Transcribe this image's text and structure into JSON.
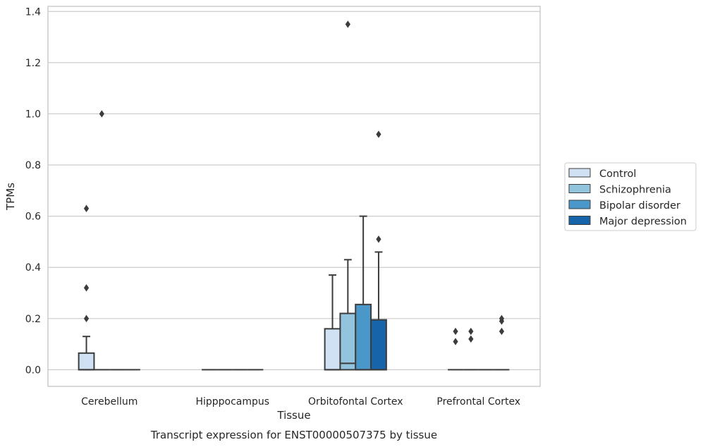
{
  "chart_data": {
    "type": "box",
    "title": "",
    "caption": "Transcript expression for ENST00000507375 by tissue",
    "xlabel": "Tissue",
    "ylabel": "TPMs",
    "ylim": [
      -0.065,
      1.42
    ],
    "yticks": [
      0.0,
      0.2,
      0.4,
      0.6,
      0.8,
      1.0,
      1.2,
      1.4
    ],
    "ytick_labels": [
      "0.0",
      "0.2",
      "0.4",
      "0.6",
      "0.8",
      "1.0",
      "1.2",
      "1.4"
    ],
    "grid": "horizontal",
    "legend_position": "right",
    "categories": [
      "Cerebellum",
      "Hipppocampus",
      "Orbitofontal Cortex",
      "Prefrontal Cortex"
    ],
    "series": [
      {
        "name": "Control",
        "color": "#cfe1f2",
        "boxes": [
          {
            "q1": 0.0,
            "median": 0.0,
            "q3": 0.065,
            "whisker_low": 0.0,
            "whisker_high": 0.13,
            "outliers": [
              0.2,
              0.32,
              0.63
            ]
          },
          {
            "q1": 0.0,
            "median": 0.0,
            "q3": 0.0,
            "whisker_low": 0.0,
            "whisker_high": 0.0,
            "outliers": []
          },
          {
            "q1": 0.0,
            "median": 0.0,
            "q3": 0.16,
            "whisker_low": 0.0,
            "whisker_high": 0.37,
            "outliers": []
          },
          {
            "q1": 0.0,
            "median": 0.0,
            "q3": 0.0,
            "whisker_low": 0.0,
            "whisker_high": 0.0,
            "outliers": [
              0.11,
              0.15
            ]
          }
        ]
      },
      {
        "name": "Schizophrenia",
        "color": "#93c4de",
        "boxes": [
          {
            "q1": 0.0,
            "median": 0.0,
            "q3": 0.0,
            "whisker_low": 0.0,
            "whisker_high": 0.0,
            "outliers": [
              1.0
            ]
          },
          {
            "q1": 0.0,
            "median": 0.0,
            "q3": 0.0,
            "whisker_low": 0.0,
            "whisker_high": 0.0,
            "outliers": []
          },
          {
            "q1": 0.0,
            "median": 0.025,
            "q3": 0.22,
            "whisker_low": 0.0,
            "whisker_high": 0.43,
            "outliers": [
              1.35
            ]
          },
          {
            "q1": 0.0,
            "median": 0.0,
            "q3": 0.0,
            "whisker_low": 0.0,
            "whisker_high": 0.0,
            "outliers": [
              0.12,
              0.15
            ]
          }
        ]
      },
      {
        "name": "Bipolar disorder",
        "color": "#4a98c9",
        "boxes": [
          {
            "q1": 0.0,
            "median": 0.0,
            "q3": 0.0,
            "whisker_low": 0.0,
            "whisker_high": 0.0,
            "outliers": []
          },
          {
            "q1": 0.0,
            "median": 0.0,
            "q3": 0.0,
            "whisker_low": 0.0,
            "whisker_high": 0.0,
            "outliers": []
          },
          {
            "q1": 0.0,
            "median": 0.0,
            "q3": 0.255,
            "whisker_low": 0.0,
            "whisker_high": 0.6,
            "outliers": []
          },
          {
            "q1": 0.0,
            "median": 0.0,
            "q3": 0.0,
            "whisker_low": 0.0,
            "whisker_high": 0.0,
            "outliers": []
          }
        ]
      },
      {
        "name": "Major depression",
        "color": "#1764ab",
        "boxes": [
          {
            "q1": 0.0,
            "median": 0.0,
            "q3": 0.0,
            "whisker_low": 0.0,
            "whisker_high": 0.0,
            "outliers": []
          },
          {
            "q1": 0.0,
            "median": 0.0,
            "q3": 0.0,
            "whisker_low": 0.0,
            "whisker_high": 0.0,
            "outliers": []
          },
          {
            "q1": 0.0,
            "median": 0.0,
            "q3": 0.195,
            "whisker_low": 0.0,
            "whisker_high": 0.46,
            "outliers": [
              0.51,
              0.92
            ]
          },
          {
            "q1": 0.0,
            "median": 0.0,
            "q3": 0.0,
            "whisker_low": 0.0,
            "whisker_high": 0.0,
            "outliers": [
              0.15,
              0.19,
              0.2
            ]
          }
        ]
      }
    ]
  }
}
